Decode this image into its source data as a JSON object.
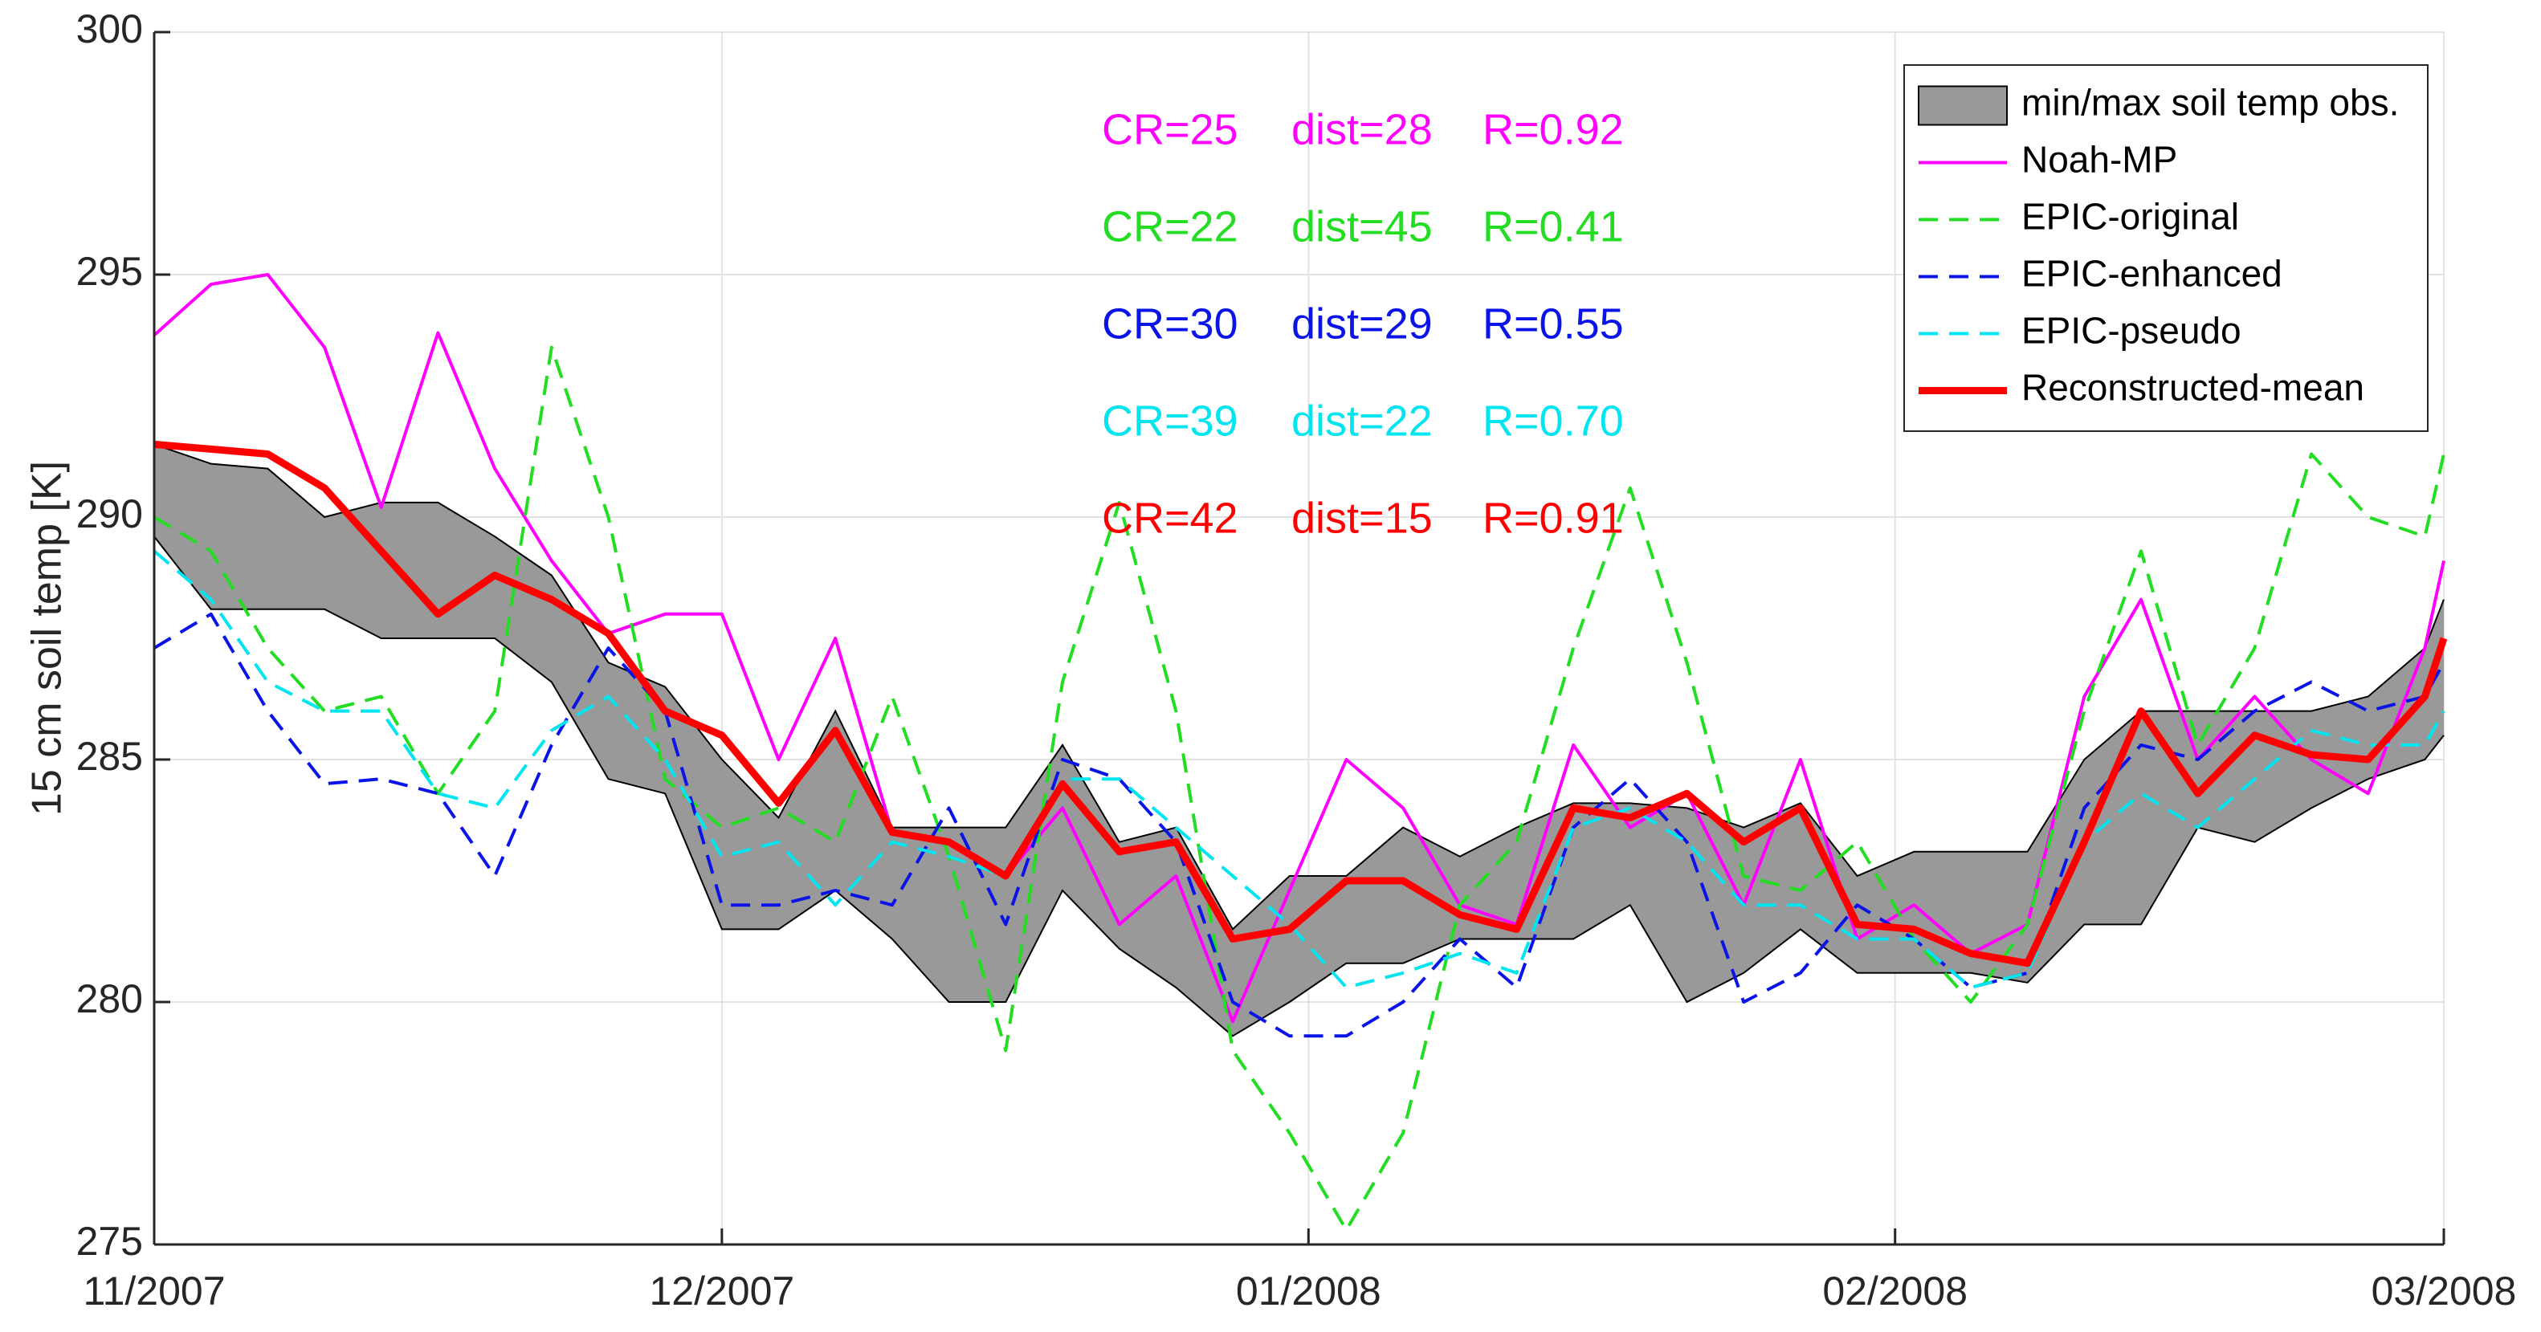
{
  "chart_data": {
    "type": "line",
    "ylabel": "15 cm soil temp [K]",
    "x": [
      0,
      3,
      6,
      9,
      12,
      15,
      18,
      21,
      24,
      27,
      30,
      33,
      36,
      39,
      42,
      45,
      48,
      51,
      54,
      57,
      60,
      63,
      66,
      69,
      72,
      75,
      78,
      81,
      84,
      87,
      90,
      93,
      96,
      99,
      102,
      105,
      108,
      111,
      114,
      117,
      120,
      121
    ],
    "xlim": [
      0,
      121
    ],
    "xticks": [
      {
        "value": 0,
        "label": "11/2007"
      },
      {
        "value": 30,
        "label": "12/2007"
      },
      {
        "value": 61,
        "label": "01/2008"
      },
      {
        "value": 92,
        "label": "02/2008"
      },
      {
        "value": 121,
        "label": "03/2008"
      }
    ],
    "ylim": [
      275,
      300
    ],
    "yticks": [
      275,
      280,
      285,
      290,
      295,
      300
    ],
    "grid": true,
    "legend": "upper right",
    "series": [
      {
        "name": "min/max soil temp obs.",
        "type": "band",
        "color": "#999999",
        "upper": [
          291.5,
          291.1,
          291,
          290,
          290.3,
          290.3,
          289.6,
          288.8,
          287,
          286.5,
          285,
          283.8,
          286,
          283.6,
          283.6,
          283.6,
          285.3,
          283.3,
          283.6,
          281.5,
          282.6,
          282.6,
          283.6,
          283,
          283.6,
          284.1,
          284.1,
          284,
          283.6,
          284.1,
          282.6,
          283.1,
          283.1,
          283.1,
          285,
          286,
          286,
          286,
          286,
          286.3,
          287.3,
          288.3
        ],
        "lower": [
          289.6,
          288.1,
          288.1,
          288.1,
          287.5,
          287.5,
          287.5,
          286.6,
          284.6,
          284.3,
          281.5,
          281.5,
          282.3,
          281.3,
          280,
          280,
          282.3,
          281.1,
          280.3,
          279.3,
          280,
          280.8,
          280.8,
          281.3,
          281.3,
          281.3,
          282,
          280,
          280.6,
          281.5,
          280.6,
          280.6,
          280.6,
          280.4,
          281.6,
          281.6,
          283.6,
          283.3,
          284,
          284.6,
          285,
          285.5
        ]
      },
      {
        "name": "Noah-MP",
        "type": "line",
        "color": "#ff00ff",
        "dashed": false,
        "linewidth": 4,
        "values": [
          293.75,
          294.8,
          295,
          293.5,
          290.2,
          293.8,
          291,
          289.1,
          287.6,
          288,
          288,
          285,
          287.5,
          283.5,
          283.3,
          282.6,
          284,
          281.6,
          282.6,
          279.6,
          282.3,
          285,
          284,
          282,
          281.6,
          285.3,
          283.6,
          284.3,
          282,
          285,
          281.3,
          282,
          281,
          281.6,
          286.3,
          288.3,
          285,
          286.3,
          285,
          284.3,
          287.3,
          289.1
        ]
      },
      {
        "name": "EPIC-original",
        "type": "line",
        "color": "#22dd22",
        "dashed": true,
        "linewidth": 4,
        "values": [
          290,
          289.3,
          287.3,
          286,
          286.3,
          284.3,
          286,
          293.5,
          290,
          284.6,
          283.6,
          284,
          283.3,
          286.3,
          283,
          279,
          286.6,
          290.3,
          286,
          279,
          277.3,
          275.3,
          277.3,
          282,
          283.3,
          287.3,
          290.6,
          287,
          282.6,
          282.3,
          283.3,
          281.3,
          280,
          281.6,
          286,
          289.3,
          285.3,
          287.3,
          291.3,
          290,
          289.6,
          291.3
        ]
      },
      {
        "name": "EPIC-enhanced",
        "type": "line",
        "color": "#0a14e6",
        "dashed": true,
        "linewidth": 4,
        "values": [
          287.3,
          288,
          286,
          284.5,
          284.6,
          284.3,
          282.6,
          285.3,
          287.3,
          286,
          282,
          282,
          282.3,
          282,
          284,
          281.6,
          285,
          284.6,
          283.3,
          280,
          279.3,
          279.3,
          280,
          281.3,
          280.3,
          283.6,
          284.6,
          283.3,
          280,
          280.6,
          282,
          281.3,
          280.3,
          280.6,
          284,
          285.3,
          285,
          286,
          286.6,
          286,
          286.3,
          287
        ]
      },
      {
        "name": "EPIC-pseudo",
        "type": "line",
        "color": "#00e5f0",
        "dashed": true,
        "linewidth": 4,
        "values": [
          289.3,
          288.3,
          286.6,
          286,
          286,
          284.3,
          284,
          285.6,
          286.3,
          285,
          283,
          283.3,
          282,
          283.3,
          283,
          282.6,
          284.6,
          284.6,
          283.6,
          282.6,
          281.6,
          280.3,
          280.6,
          281,
          280.6,
          283.6,
          284,
          283.3,
          282,
          282,
          281.3,
          281.3,
          280.3,
          280.6,
          283.3,
          284.3,
          283.6,
          284.6,
          285.6,
          285.3,
          285.3,
          286
        ]
      },
      {
        "name": "Reconstructed-mean",
        "type": "line",
        "color": "#ff0000",
        "dashed": false,
        "linewidth": 9,
        "values": [
          291.5,
          291.4,
          291.3,
          290.6,
          289.3,
          288,
          288.8,
          288.3,
          287.6,
          286,
          285.5,
          284.1,
          285.6,
          283.5,
          283.3,
          282.6,
          284.5,
          283.1,
          283.3,
          281.3,
          281.5,
          282.5,
          282.5,
          281.8,
          281.5,
          284,
          283.8,
          284.3,
          283.3,
          284,
          281.6,
          281.5,
          281,
          280.8,
          283.3,
          286,
          284.3,
          285.5,
          285.1,
          285,
          286.3,
          287.5
        ]
      }
    ],
    "annotations": [
      {
        "color": "#ff00ff",
        "texts": [
          "CR=25",
          "dist=28",
          "R=0.92"
        ]
      },
      {
        "color": "#22dd22",
        "texts": [
          "CR=22",
          "dist=45",
          "R=0.41"
        ]
      },
      {
        "color": "#0a14e6",
        "texts": [
          "CR=30",
          "dist=29",
          "R=0.55"
        ]
      },
      {
        "color": "#00e5f0",
        "texts": [
          "CR=39",
          "dist=22",
          "R=0.70"
        ]
      },
      {
        "color": "#ff0000",
        "texts": [
          "CR=42",
          "dist=15",
          "R=0.91"
        ]
      }
    ]
  }
}
